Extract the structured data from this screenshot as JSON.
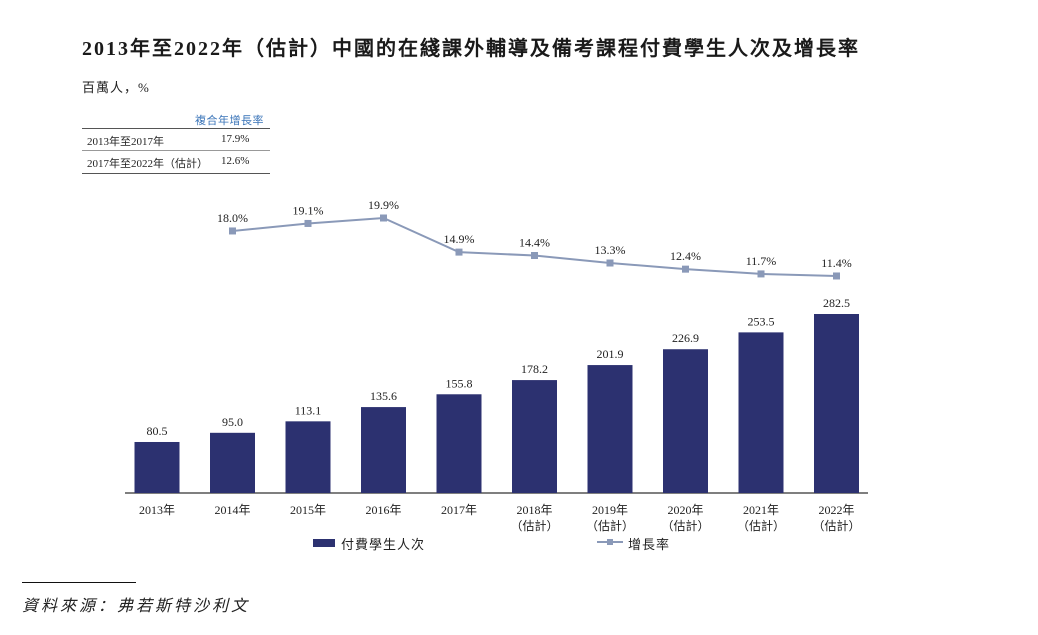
{
  "chart_data": {
    "type": "bar",
    "title": "2013年至2022年（估計）中國的在綫課外輔導及備考課程付費學生人次及增長率",
    "ylabel": "百萬人，%",
    "xlabel": "",
    "grid": false,
    "legend_position": "bottom",
    "categories": [
      {
        "label": "2013年"
      },
      {
        "label": "2014年"
      },
      {
        "label": "2015年"
      },
      {
        "label": "2016年"
      },
      {
        "label": "2017年"
      },
      {
        "label": "2018年",
        "sub": "（估計）"
      },
      {
        "label": "2019年",
        "sub": "（估計）"
      },
      {
        "label": "2020年",
        "sub": "（估計）"
      },
      {
        "label": "2021年",
        "sub": "（估計）"
      },
      {
        "label": "2022年",
        "sub": "（估計）"
      }
    ],
    "series": [
      {
        "name": "付費學生人次",
        "type": "bar",
        "color": "#2c3170",
        "values": [
          80.5,
          95.0,
          113.1,
          135.6,
          155.8,
          178.2,
          201.9,
          226.9,
          253.5,
          282.5
        ],
        "labels": [
          "80.5",
          "95.0",
          "113.1",
          "135.6",
          "155.8",
          "178.2",
          "201.9",
          "226.9",
          "253.5",
          "282.5"
        ]
      },
      {
        "name": "增長率",
        "type": "line",
        "color": "#8a99b8",
        "values": [
          null,
          18.0,
          19.1,
          19.9,
          14.9,
          14.4,
          13.3,
          12.4,
          11.7,
          11.4
        ],
        "labels": [
          null,
          "18.0%",
          "19.1%",
          "19.9%",
          "14.9%",
          "14.4%",
          "13.3%",
          "12.4%",
          "11.7%",
          "11.4%"
        ]
      }
    ]
  },
  "cagr_table": {
    "header": "複合年增長率",
    "rows": [
      {
        "period": "2013年至2017年",
        "value": "17.9%"
      },
      {
        "period": "2017年至2022年（估計）",
        "value": "12.6%"
      }
    ]
  },
  "source": {
    "label": "資料來源：弗若斯特沙利文"
  }
}
